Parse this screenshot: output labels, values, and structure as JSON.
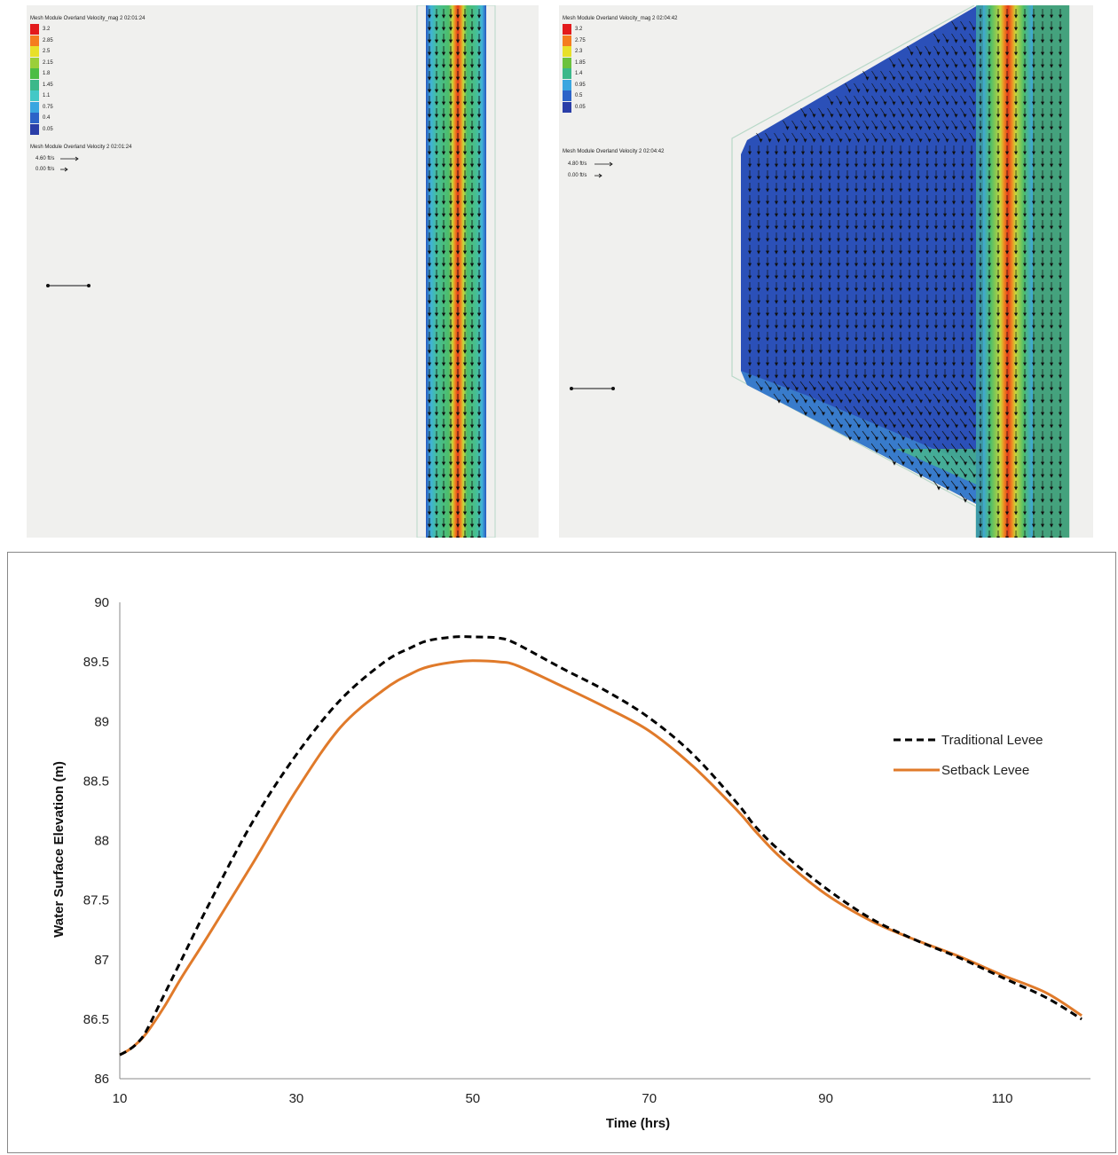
{
  "left_panel": {
    "title": "Mesh Module Overland Velocity_mag 2 02:01:24",
    "legend_values": [
      "3.2",
      "2.85",
      "2.5",
      "2.15",
      "1.8",
      "1.45",
      "1.1",
      "0.75",
      "0.4",
      "0.05"
    ],
    "vector_title": "Mesh Module Overland Velocity 2 02:01:24",
    "vector_labels": [
      "4.60 ft/s",
      "0.00 ft/s"
    ]
  },
  "right_panel": {
    "title": "Mesh Module Overland Velocity_mag 2 02:04:42",
    "legend_values": [
      "3.2",
      "2.75",
      "2.3",
      "1.85",
      "1.4",
      "0.95",
      "0.5",
      "0.05"
    ],
    "vector_title": "Mesh Module Overland Velocity 2 02:04:42",
    "vector_labels": [
      "4.80 ft/s",
      "0.00 ft/s"
    ]
  },
  "colorscale": {
    "left": [
      "#e31a1c",
      "#f57c1f",
      "#e8e02a",
      "#9bcf3a",
      "#4dbd45",
      "#3cb88a",
      "#43c8c6",
      "#3aa6e0",
      "#2c63c8",
      "#2a3ea8"
    ],
    "right": [
      "#e31a1c",
      "#f57c1f",
      "#e8e02a",
      "#6cc23d",
      "#3cb88a",
      "#3aa6e0",
      "#2c63c8",
      "#2a3ea8"
    ]
  },
  "chart_data": {
    "type": "line",
    "title": "",
    "xlabel": "Time (hrs)",
    "ylabel": "Water Surface Elevation (m)",
    "xlim": [
      10,
      120
    ],
    "ylim": [
      86,
      90
    ],
    "xticks": [
      10,
      30,
      50,
      70,
      90,
      110
    ],
    "yticks": [
      86,
      86.5,
      87,
      87.5,
      88,
      88.5,
      89,
      89.5,
      90
    ],
    "legend_position": "right",
    "grid": false,
    "series": [
      {
        "name": "Traditional Levee",
        "color": "#000000",
        "style": "dashed",
        "x": [
          10,
          11,
          12,
          13,
          15,
          17,
          20,
          25,
          30,
          35,
          40,
          43,
          45,
          48,
          50,
          53,
          55,
          60,
          65,
          70,
          75,
          80,
          82,
          85,
          90,
          95,
          100,
          105,
          110,
          115,
          119
        ],
        "y": [
          86.2,
          86.24,
          86.3,
          86.4,
          86.7,
          87.0,
          87.45,
          88.15,
          88.72,
          89.18,
          89.5,
          89.62,
          89.68,
          89.71,
          89.71,
          89.7,
          89.65,
          89.45,
          89.26,
          89.03,
          88.72,
          88.31,
          88.12,
          87.9,
          87.6,
          87.35,
          87.17,
          87.02,
          86.85,
          86.68,
          86.5
        ]
      },
      {
        "name": "Setback Levee",
        "color": "#e07a2a",
        "style": "solid",
        "x": [
          10,
          11,
          12,
          13,
          15,
          17,
          20,
          25,
          30,
          35,
          40,
          43,
          45,
          48,
          50,
          53,
          55,
          60,
          65,
          70,
          75,
          80,
          82,
          85,
          90,
          95,
          100,
          105,
          110,
          115,
          119
        ],
        "y": [
          86.2,
          86.24,
          86.3,
          86.38,
          86.6,
          86.85,
          87.2,
          87.8,
          88.42,
          88.95,
          89.27,
          89.4,
          89.46,
          89.5,
          89.51,
          89.5,
          89.47,
          89.3,
          89.12,
          88.92,
          88.62,
          88.25,
          88.08,
          87.85,
          87.55,
          87.33,
          87.17,
          87.03,
          86.87,
          86.72,
          86.53
        ]
      }
    ]
  }
}
